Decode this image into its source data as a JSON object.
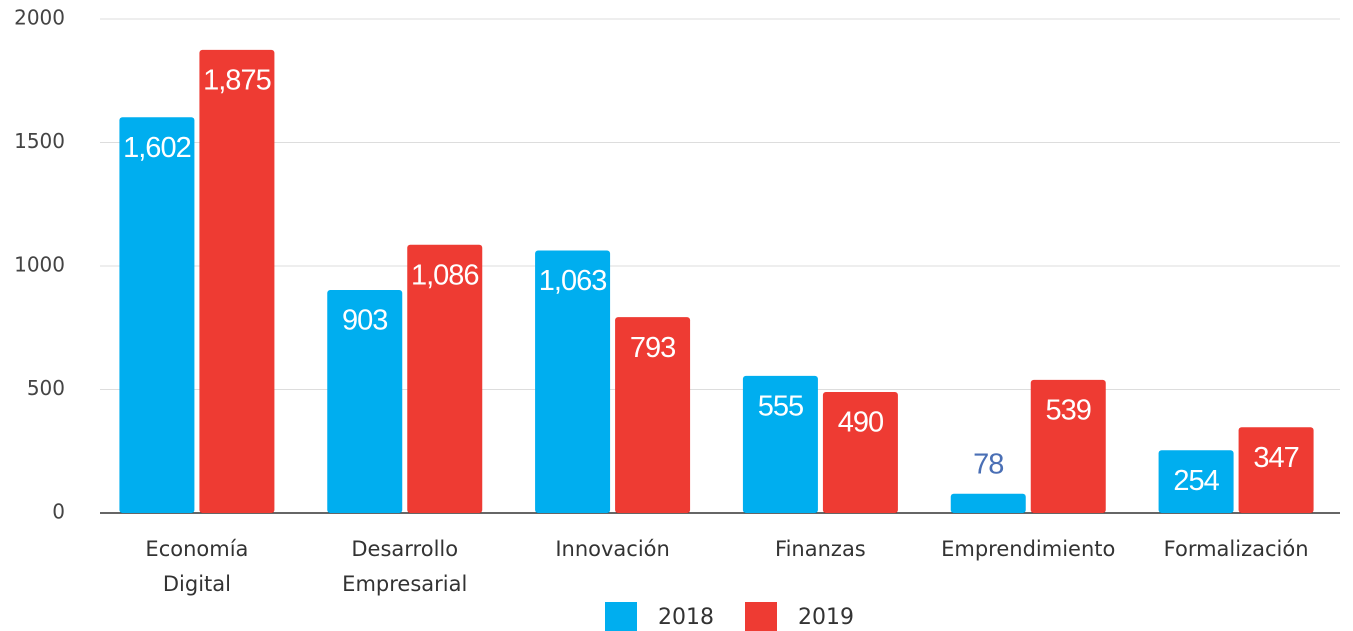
{
  "chart_data": {
    "type": "bar",
    "categories": [
      "Economía Digital",
      "Desarrollo Empresarial",
      "Innovación",
      "Finanzas",
      "Emprendimiento",
      "Formalización"
    ],
    "series": [
      {
        "name": "2018",
        "color": "#00aeef",
        "values": [
          1602,
          903,
          1063,
          555,
          78,
          254
        ],
        "value_labels": [
          "1,602",
          "903",
          "1,063",
          "555",
          "78",
          "254"
        ]
      },
      {
        "name": "2019",
        "color": "#ee3b33",
        "values": [
          1875,
          1086,
          793,
          490,
          539,
          347
        ],
        "value_labels": [
          "1,875",
          "1,086",
          "793",
          "490",
          "539",
          "347"
        ]
      }
    ],
    "ylim": [
      0,
      2000
    ],
    "yticks": [
      0,
      500,
      1000,
      1500,
      2000
    ],
    "grid": true,
    "legend": "bottom"
  }
}
